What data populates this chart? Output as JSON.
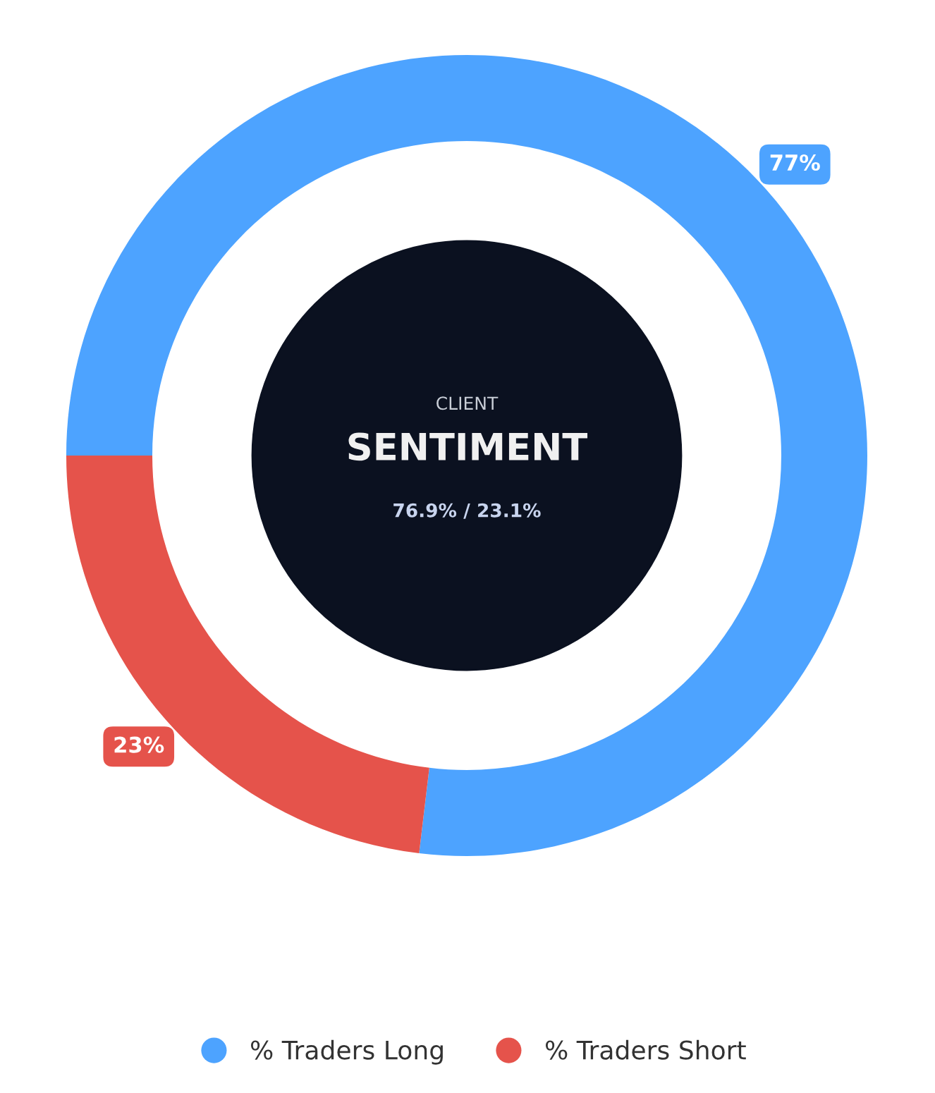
{
  "chart_data": {
    "type": "donut",
    "categories": [
      "% Traders Long",
      "% Traders Short"
    ],
    "values": [
      76.9,
      23.1
    ],
    "colors": [
      "#4da3ff",
      "#e5534b"
    ],
    "value_labels": [
      "77%",
      "23%"
    ],
    "annotations": [
      "CLIENT",
      "SENTIMENT",
      "76.9% / 23.1%"
    ],
    "legend": "bottom"
  }
}
